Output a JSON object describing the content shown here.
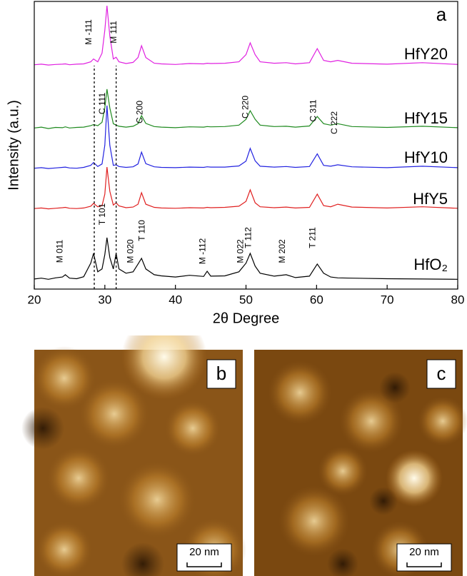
{
  "chart_data": {
    "type": "line",
    "panel_label": "a",
    "x_label": "2θ Degree",
    "y_label": "Intensity (a.u.)",
    "xlim": [
      20,
      80
    ],
    "xticks": [
      20,
      30,
      40,
      50,
      60,
      70,
      80
    ],
    "ylim": [
      0,
      100
    ],
    "vlines": [
      28.5,
      31.6
    ],
    "x": [
      20,
      21,
      22,
      23,
      24,
      24.4,
      25,
      26,
      27,
      28,
      28.4,
      29,
      29.6,
      30,
      30.3,
      30.7,
      31.2,
      31.6,
      32,
      33,
      34,
      34.7,
      35.2,
      35.8,
      37,
      38,
      40,
      42,
      44,
      44.5,
      45,
      47,
      49,
      50,
      50.6,
      51.3,
      52,
      54,
      55.7,
      57,
      59,
      60.1,
      61,
      62,
      63,
      65,
      70,
      75,
      80
    ],
    "series": [
      {
        "name": "HfY20",
        "color": "#e020e0",
        "values": [
          78,
          78.2,
          77.9,
          78.1,
          78.2,
          78.3,
          78,
          78.2,
          78.3,
          79,
          80,
          79,
          82,
          90,
          98.5,
          88,
          80,
          80.6,
          79,
          78.4,
          78.8,
          80.5,
          84.6,
          80.5,
          78.5,
          78.3,
          78.1,
          78.4,
          78.3,
          78.5,
          78.4,
          78.5,
          79,
          81.5,
          85.6,
          81.5,
          79,
          78.5,
          78.7,
          78.3,
          78.7,
          83.6,
          79.5,
          79,
          79.5,
          78.5,
          78.2,
          78.7,
          78.1
        ]
      },
      {
        "name": "HfY15",
        "color": "#1f8a1f",
        "values": [
          56,
          56.3,
          55.8,
          56.2,
          56.1,
          56.4,
          56,
          56.2,
          56.3,
          56.8,
          57.2,
          56.8,
          58,
          63,
          69.5,
          63,
          57.5,
          57,
          56.6,
          56.3,
          56.6,
          57.5,
          60.3,
          57.6,
          56.5,
          56.3,
          56.1,
          56.4,
          56.3,
          56.5,
          56.4,
          56.5,
          57,
          59,
          62,
          59,
          57,
          56.5,
          56.6,
          56.3,
          56.7,
          60,
          57.5,
          57,
          57.5,
          56.5,
          56.2,
          56.6,
          56.1
        ]
      },
      {
        "name": "HfY10",
        "color": "#2222e0",
        "values": [
          42,
          42.2,
          41.9,
          42.1,
          42.3,
          42.4,
          42.1,
          42,
          42.3,
          43,
          44,
          42.6,
          43.5,
          50,
          63.8,
          50,
          43,
          43.2,
          42.6,
          42.3,
          42.5,
          43.5,
          47.6,
          43.6,
          42.5,
          42.3,
          42.2,
          42.4,
          42.3,
          42.5,
          42.4,
          42.4,
          42.8,
          44.5,
          48.9,
          44.6,
          42.7,
          42.4,
          42.6,
          42.3,
          42.6,
          47,
          43,
          42.7,
          43.2,
          42.5,
          42.2,
          42.7,
          42.2
        ]
      },
      {
        "name": "HfY5",
        "color": "#e02020",
        "values": [
          28,
          28.2,
          27.9,
          28.1,
          28.3,
          28.4,
          28.1,
          28,
          28.2,
          28.8,
          29.8,
          28.6,
          29,
          33,
          42.4,
          34,
          29.2,
          30,
          28.9,
          28.3,
          28.5,
          29.5,
          33.5,
          29.5,
          28.4,
          28.2,
          28.1,
          28.3,
          28.2,
          28.4,
          28.3,
          28.4,
          28.8,
          30.5,
          34.5,
          30,
          28.6,
          28.3,
          28.5,
          28.2,
          28.4,
          33,
          29,
          28.6,
          29.5,
          28.5,
          28.2,
          28.6,
          28.1
        ]
      },
      {
        "name": "HfO₂",
        "color": "#000000",
        "values": [
          3.5,
          3.8,
          3.4,
          3.9,
          4.2,
          5,
          3.8,
          3.6,
          4.3,
          9,
          12.4,
          6,
          7,
          12,
          17.9,
          11,
          7,
          12.4,
          7,
          5.5,
          6,
          8.7,
          10.7,
          7,
          5,
          4.6,
          4.2,
          4.8,
          4.4,
          6.2,
          4.5,
          4.6,
          6,
          9,
          12.4,
          8,
          5.5,
          4.5,
          5,
          4,
          4.5,
          8.7,
          5.5,
          4.2,
          3.9,
          3.8,
          3.6,
          3.5,
          3.4
        ]
      }
    ],
    "annotations": [
      {
        "text": "M -111",
        "x": 28.4
      },
      {
        "text": "M 111",
        "x": 31.9
      },
      {
        "text": "C 111",
        "x": 30.3
      },
      {
        "text": "C 200",
        "x": 35.6
      },
      {
        "text": "C 220",
        "x": 50.6
      },
      {
        "text": "C 311",
        "x": 60.2
      },
      {
        "text": "C 222",
        "x": 63.2
      },
      {
        "text": "M 011",
        "x": 24.3
      },
      {
        "text": "T 101",
        "x": 30.3
      },
      {
        "text": "M 020",
        "x": 34.3
      },
      {
        "text": "T 110",
        "x": 35.9
      },
      {
        "text": "M -112",
        "x": 44.5
      },
      {
        "text": "M 022",
        "x": 49.9
      },
      {
        "text": "T 112",
        "x": 51.0
      },
      {
        "text": "M 202",
        "x": 55.8
      },
      {
        "text": "T 211",
        "x": 60.1
      }
    ]
  },
  "images": [
    {
      "label": "b",
      "scale_bar": "20 nm"
    },
    {
      "label": "c",
      "scale_bar": "20 nm"
    }
  ]
}
